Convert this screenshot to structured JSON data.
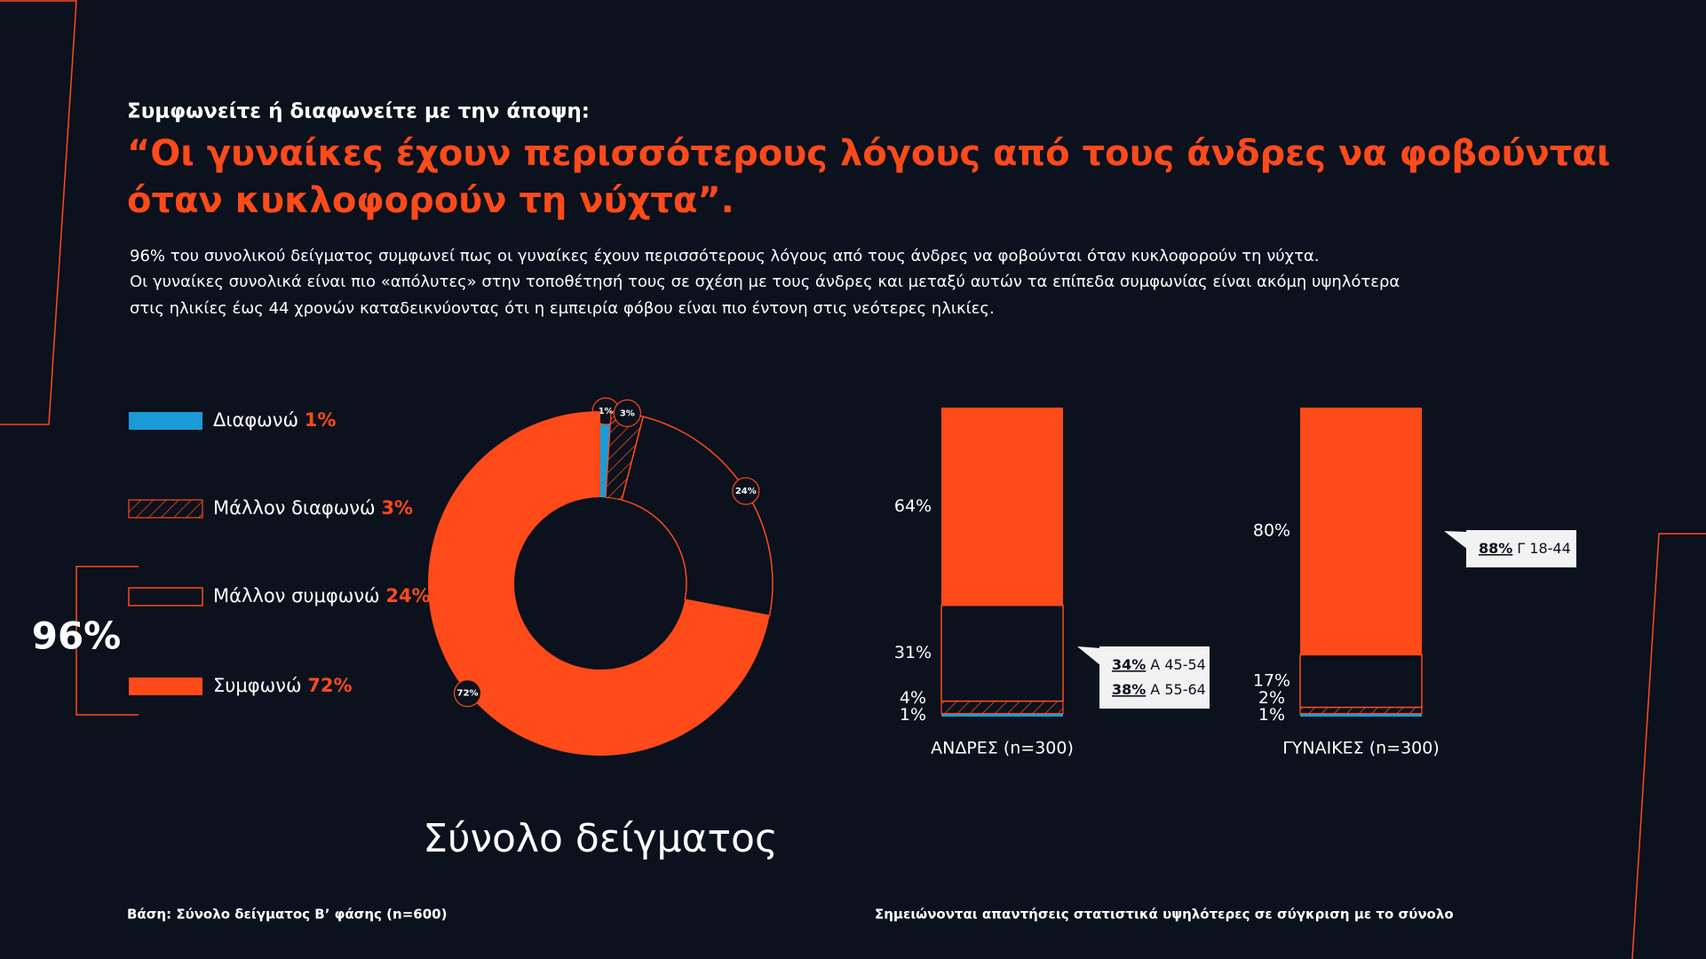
{
  "header": {
    "subtitle": "Συμφωνείτε ή διαφωνείτε με την άποψη:",
    "title_lines": [
      "“Οι γυναίκες έχουν περισσότερους λόγους από τους άνδρες να φοβούνται",
      "όταν κυκλοφορούν τη νύχτα”."
    ],
    "body_lines": [
      "96% του συνολικού δείγματος συμφωνεί πως οι γυναίκες έχουν περισσότερους λόγους από τους άνδρες να φοβούνται όταν κυκλοφορούν τη νύχτα.",
      "Οι γυναίκες συνολικά είναι πιο «απόλυτες» στην τοποθέτησή τους σε σχέση με τους άνδρες και μεταξύ αυτών τα επίπεδα συμφωνίας είναι ακόμη υψηλότερα",
      "στις ηλικίες έως 44 χρονών καταδεικνύοντας ότι η εμπειρία φόβου είναι πιο έντονη στις νεότερες ηλικίες."
    ]
  },
  "chart_data": [
    {
      "type": "donut",
      "title": "Σύνολο δείγματος",
      "categories": [
        "Διαφωνώ",
        "Μάλλον διαφωνώ",
        "Μάλλον συμφωνώ",
        "Συμφωνώ"
      ],
      "values": [
        1,
        3,
        24,
        72
      ],
      "value_labels": [
        "1%",
        "3%",
        "24%",
        "72%"
      ],
      "colors": [
        "#1a9bd7",
        "hatch",
        "outline",
        "#ff4a1a"
      ],
      "total": {
        "value": 96,
        "label": "96%"
      }
    },
    {
      "type": "stacked_bar",
      "categories": [
        "ΑΝΔΡΕΣ (n=300)",
        "ΓΥΝΑΙΚΕΣ (n=300)"
      ],
      "ylim": [
        0,
        100
      ],
      "series": [
        {
          "color": "#1a9bd7",
          "values": [
            1,
            1
          ],
          "value_labels": [
            "1%",
            "1%"
          ]
        },
        {
          "color": "hatch",
          "values": [
            4,
            2
          ],
          "value_labels": [
            "4%",
            "2%"
          ]
        },
        {
          "color": "outline",
          "values": [
            31,
            17
          ],
          "value_labels": [
            "31%",
            "17%"
          ]
        },
        {
          "color": "#ff4a1a",
          "values": [
            64,
            80
          ],
          "value_labels": [
            "64%",
            "80%"
          ]
        }
      ],
      "callouts": [
        [
          {
            "value": 34,
            "label": "34%",
            "group": "Α 45-54"
          },
          {
            "value": 38,
            "label": "38%",
            "group": "Α 55-64"
          }
        ],
        [
          {
            "value": 88,
            "label": "88%",
            "group": "Γ 18-44"
          }
        ]
      ]
    }
  ],
  "footnotes": {
    "left": "Βάση: Σύνολο δείγματος Β’ φάσης (n=600)",
    "right": "Σημειώνονται απαντήσεις στατιστικά υψηλότερες σε σύγκριση με το σύνολο"
  }
}
